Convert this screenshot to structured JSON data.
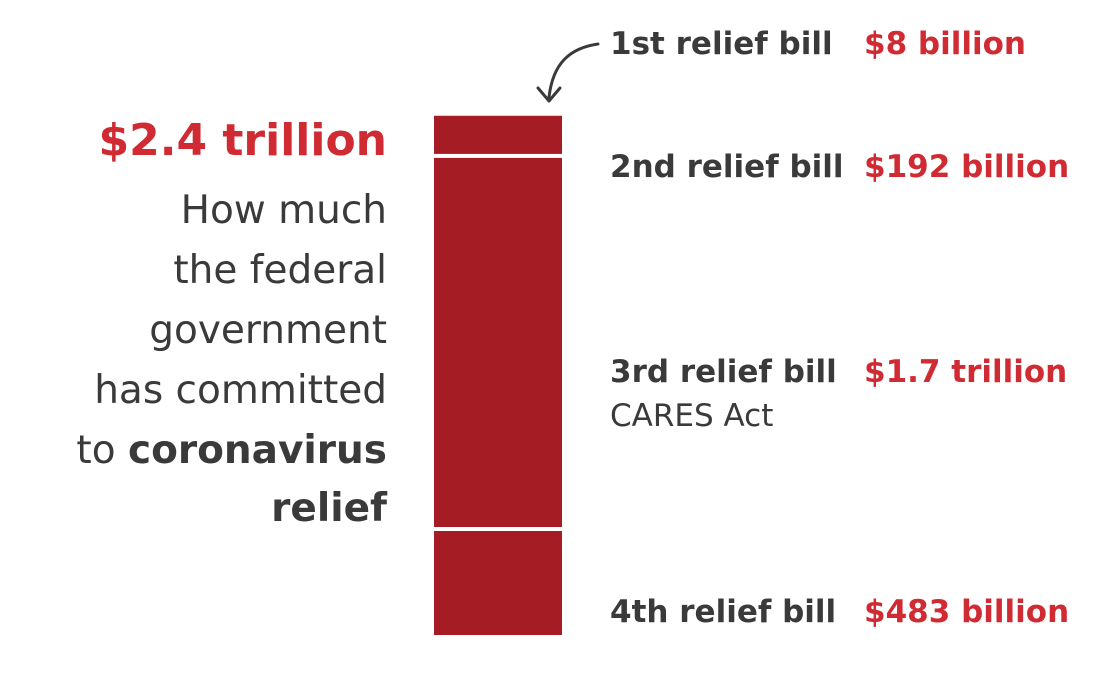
{
  "colors": {
    "bar": "#a51c24",
    "amount_text": "#d02a33",
    "label_text": "#3a3a3a",
    "separator": "#ffffff"
  },
  "total": "$2.4 trillion",
  "description": {
    "lines": [
      "How much",
      "the federal",
      "government",
      "has committed"
    ],
    "line5_prefix": "to ",
    "line5_bold": "coronavirus",
    "line6_bold": "relief"
  },
  "chart_data": {
    "type": "bar",
    "stacked": true,
    "orientation": "vertical",
    "unit": "billion USD",
    "total_label": "$2.4 trillion",
    "series": [
      {
        "name": "1st relief bill",
        "value": 8,
        "label": "$8 billion",
        "note": ""
      },
      {
        "name": "2nd relief bill",
        "value": 192,
        "label": "$192 billion",
        "note": ""
      },
      {
        "name": "3rd relief bill",
        "value": 1700,
        "label": "$1.7 trillion",
        "note": "CARES Act"
      },
      {
        "name": "4th relief bill",
        "value": 483,
        "label": "$483 billion",
        "note": ""
      }
    ]
  }
}
